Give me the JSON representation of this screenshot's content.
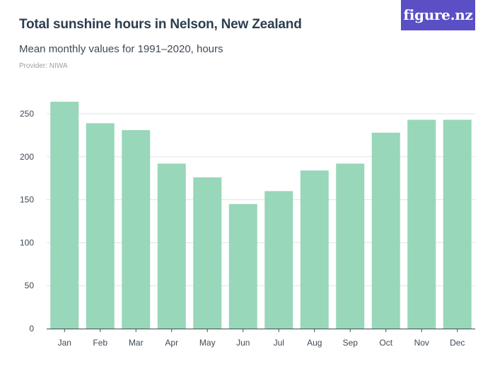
{
  "header": {
    "title": "Total sunshine hours in Nelson, New Zealand",
    "subtitle": "Mean monthly values for 1991–2020, hours",
    "provider": "Provider: NIWA",
    "logo_text": "figure.nz"
  },
  "colors": {
    "bar": "#98d7b9",
    "grid": "#dfe3e6",
    "axis": "#3f4a55",
    "logo_bg": "#5a4fc4"
  },
  "chart_data": {
    "type": "bar",
    "title": "Total sunshine hours in Nelson, New Zealand",
    "subtitle": "Mean monthly values for 1991–2020, hours",
    "xlabel": "",
    "ylabel": "",
    "categories": [
      "Jan",
      "Feb",
      "Mar",
      "Apr",
      "May",
      "Jun",
      "Jul",
      "Aug",
      "Sep",
      "Oct",
      "Nov",
      "Dec"
    ],
    "values": [
      264,
      239,
      231,
      192,
      176,
      145,
      160,
      184,
      192,
      228,
      243,
      243
    ],
    "ylim": [
      0,
      250
    ],
    "yticks": [
      0,
      50,
      100,
      150,
      200,
      250
    ],
    "grid": true,
    "legend": "none"
  }
}
